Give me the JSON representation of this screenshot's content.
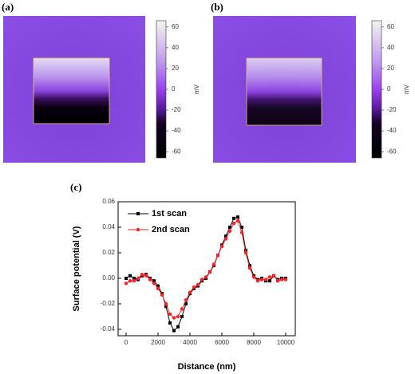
{
  "chart_data": [
    {
      "type": "heatmap",
      "panel_label": "(a)",
      "colorbar_label": "mV",
      "colorbar_lim": [
        -66,
        66
      ],
      "colorbar_ticks": [
        -60,
        -40,
        -20,
        0,
        20,
        40,
        60
      ]
    },
    {
      "type": "heatmap",
      "panel_label": "(b)",
      "colorbar_label": "mV",
      "colorbar_lim": [
        -66,
        66
      ],
      "colorbar_ticks": [
        -60,
        -40,
        -20,
        0,
        20,
        40,
        60
      ]
    },
    {
      "type": "line",
      "panel_label": "(c)",
      "xlabel": "Distance (nm)",
      "ylabel": "Surface potential (V)",
      "x": [
        0,
        250,
        500,
        750,
        1000,
        1250,
        1500,
        1750,
        2000,
        2250,
        2500,
        2750,
        3000,
        3250,
        3500,
        3750,
        4000,
        4250,
        4500,
        4750,
        5000,
        5250,
        5500,
        5750,
        6000,
        6250,
        6500,
        6750,
        7000,
        7250,
        7500,
        7750,
        8000,
        8250,
        8500,
        8750,
        9000,
        9250,
        9500,
        9750,
        10000
      ],
      "series": [
        {
          "name": "1st scan",
          "color": "#000000",
          "values": [
            0.0,
            0.002,
            0.0,
            -0.001,
            0.002,
            0.003,
            0.0,
            -0.002,
            -0.006,
            -0.012,
            -0.022,
            -0.035,
            -0.041,
            -0.038,
            -0.03,
            -0.02,
            -0.012,
            -0.008,
            -0.006,
            -0.002,
            0.0,
            0.005,
            0.01,
            0.018,
            0.026,
            0.033,
            0.04,
            0.047,
            0.048,
            0.04,
            0.022,
            0.01,
            0.002,
            -0.001,
            0.0,
            -0.002,
            -0.002,
            0.002,
            -0.001,
            0.0,
            0.0
          ]
        },
        {
          "name": "2nd scan",
          "color": "#ff2020",
          "values": [
            -0.004,
            -0.002,
            -0.002,
            0.0,
            0.003,
            0.002,
            -0.001,
            -0.004,
            -0.008,
            -0.013,
            -0.02,
            -0.028,
            -0.031,
            -0.03,
            -0.024,
            -0.017,
            -0.011,
            -0.007,
            -0.005,
            -0.001,
            0.001,
            0.005,
            0.011,
            0.018,
            0.025,
            0.031,
            0.037,
            0.043,
            0.045,
            0.036,
            0.02,
            0.008,
            0.001,
            -0.002,
            -0.001,
            -0.001,
            0.001,
            0.002,
            -0.002,
            -0.001,
            -0.001
          ]
        }
      ],
      "xlim": [
        -500,
        10600
      ],
      "xticks": [
        0,
        2000,
        4000,
        6000,
        8000,
        10000
      ],
      "ylim": [
        -0.045,
        0.06
      ],
      "yticks": [
        -0.04,
        -0.02,
        {
          "value": 0,
          "label": "0.00"
        },
        0.02,
        0.04,
        0.06
      ]
    }
  ]
}
